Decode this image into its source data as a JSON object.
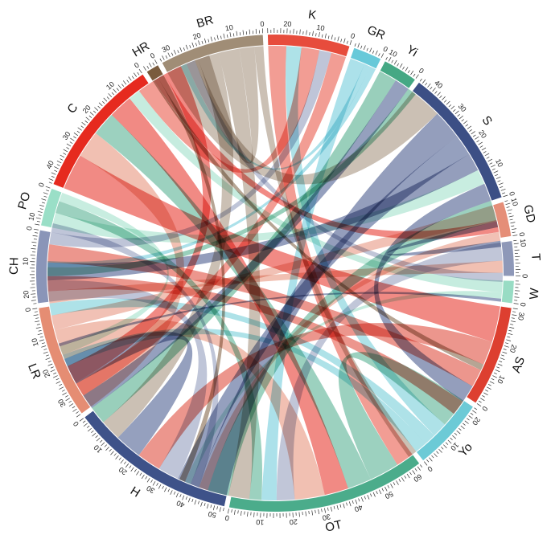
{
  "chart_data": {
    "type": "chord",
    "title": "",
    "segments": [
      {
        "name": "K",
        "total": 26,
        "color": "#e74c3c"
      },
      {
        "name": "GR",
        "total": 9,
        "color": "#68c9d9"
      },
      {
        "name": "Yi",
        "total": 11,
        "color": "#45a884"
      },
      {
        "name": "S",
        "total": 45,
        "color": "#3c4f85"
      },
      {
        "name": "GD",
        "total": 11,
        "color": "#e58e78"
      },
      {
        "name": "T",
        "total": 11,
        "color": "#8e98b8"
      },
      {
        "name": "W",
        "total": 7,
        "color": "#98dcc4"
      },
      {
        "name": "AS",
        "total": 32,
        "color": "#dd3f30"
      },
      {
        "name": "Yo",
        "total": 23,
        "color": "#6ccad6"
      },
      {
        "name": "OT",
        "total": 63,
        "color": "#4bac8b"
      },
      {
        "name": "H",
        "total": 53,
        "color": "#3e5289"
      },
      {
        "name": "LR",
        "total": 36,
        "color": "#e58d73"
      },
      {
        "name": "CH",
        "total": 23,
        "color": "#8a95b8"
      },
      {
        "name": "PO",
        "total": 12,
        "color": "#9adfc7"
      },
      {
        "name": "C",
        "total": 45,
        "color": "#e62a1f"
      },
      {
        "name": "HR",
        "total": 4,
        "color": "#7a5b3d"
      },
      {
        "name": "BR",
        "total": 33,
        "color": "#a08d76"
      }
    ],
    "tick_step": 10,
    "links": [
      {
        "source": "C",
        "target": "AS",
        "value": 12
      },
      {
        "source": "BR",
        "target": "S",
        "value": 11
      },
      {
        "source": "S",
        "target": "H",
        "value": 10
      },
      {
        "source": "K",
        "target": "OT",
        "value": 6
      },
      {
        "source": "H",
        "target": "S",
        "value": 7
      },
      {
        "source": "LR",
        "target": "C",
        "value": 9
      },
      {
        "source": "CH",
        "target": "H",
        "value": 7
      },
      {
        "source": "OT",
        "target": "Yo",
        "value": 10
      },
      {
        "source": "OT",
        "target": "C",
        "value": 8
      },
      {
        "source": "AS",
        "target": "H",
        "value": 8
      },
      {
        "source": "H",
        "target": "LR",
        "value": 9
      },
      {
        "source": "Yo",
        "target": "K",
        "value": 5
      },
      {
        "source": "S",
        "target": "CH",
        "value": 6
      },
      {
        "source": "C",
        "target": "OT",
        "value": 8
      },
      {
        "source": "LR",
        "target": "OT",
        "value": 10
      },
      {
        "source": "BR",
        "target": "H",
        "value": 7
      },
      {
        "source": "GD",
        "target": "LR",
        "value": 5
      },
      {
        "source": "T",
        "target": "OT",
        "value": 6
      },
      {
        "source": "W",
        "target": "C",
        "value": 4
      },
      {
        "source": "PO",
        "target": "S",
        "value": 5
      },
      {
        "source": "Yi",
        "target": "H",
        "value": 6
      },
      {
        "source": "GR",
        "target": "OT",
        "value": 5
      },
      {
        "source": "HR",
        "target": "AS",
        "value": 2
      },
      {
        "source": "K",
        "target": "C",
        "value": 6
      },
      {
        "source": "AS",
        "target": "CH",
        "value": 6
      },
      {
        "source": "Yo",
        "target": "LR",
        "value": 4
      },
      {
        "source": "OT",
        "target": "PO",
        "value": 4
      },
      {
        "source": "H",
        "target": "Yi",
        "value": 5
      },
      {
        "source": "BR",
        "target": "OT",
        "value": 7
      },
      {
        "source": "S",
        "target": "AS",
        "value": 6
      },
      {
        "source": "C",
        "target": "GD",
        "value": 4
      },
      {
        "source": "CH",
        "target": "K",
        "value": 4
      },
      {
        "source": "LR",
        "target": "T",
        "value": 4
      },
      {
        "source": "K",
        "target": "H",
        "value": 5
      },
      {
        "source": "OT",
        "target": "S",
        "value": 7
      },
      {
        "source": "C",
        "target": "H",
        "value": 6
      },
      {
        "source": "GD",
        "target": "OT",
        "value": 3
      },
      {
        "source": "Yo",
        "target": "H",
        "value": 4
      },
      {
        "source": "AS",
        "target": "LR",
        "value": 5
      },
      {
        "source": "GR",
        "target": "C",
        "value": 2
      },
      {
        "source": "Yi",
        "target": "LR",
        "value": 3
      },
      {
        "source": "T",
        "target": "C",
        "value": 3
      },
      {
        "source": "BR",
        "target": "C",
        "value": 5
      },
      {
        "source": "PO",
        "target": "H",
        "value": 3
      },
      {
        "source": "CH",
        "target": "OT",
        "value": 3
      },
      {
        "source": "W",
        "target": "OT",
        "value": 2
      },
      {
        "source": "HR",
        "target": "OT",
        "value": 2
      },
      {
        "source": "BR",
        "target": "Yo",
        "value": 3
      },
      {
        "source": "S",
        "target": "GD",
        "value": 2
      },
      {
        "source": "H",
        "target": "W",
        "value": 1
      },
      {
        "source": "GR",
        "target": "LR",
        "value": 2
      }
    ]
  }
}
